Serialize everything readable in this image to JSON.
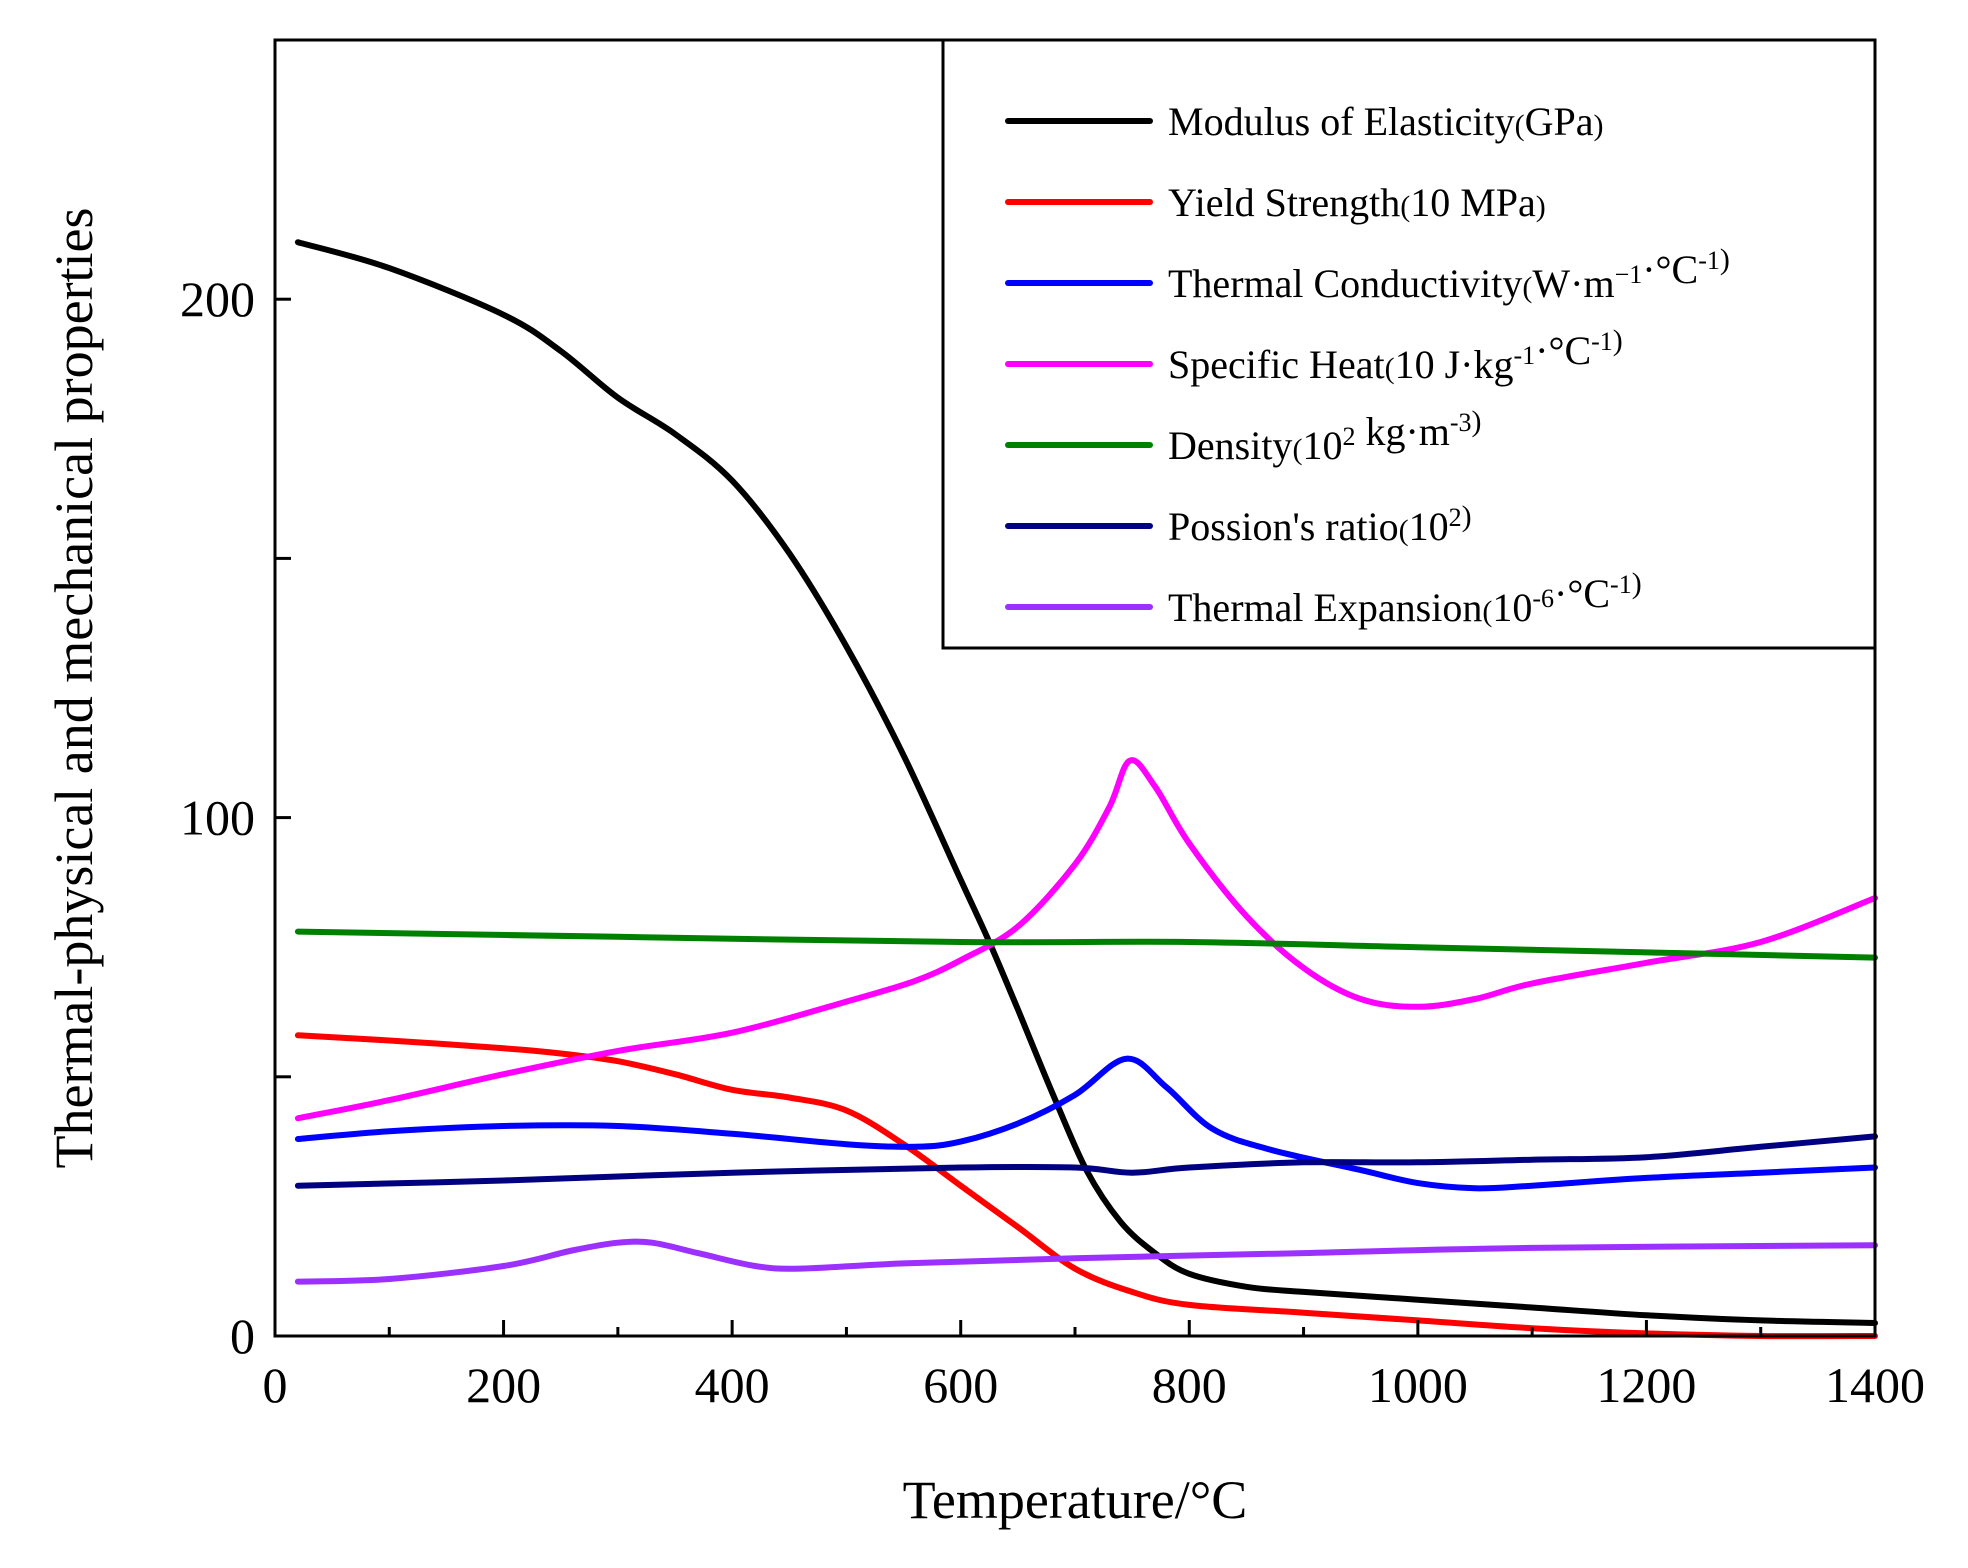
{
  "chart_data": {
    "type": "line",
    "title": "",
    "xlabel": "Temperature/°C",
    "ylabel": "Thermal-physical and mechanical properties",
    "xlim": [
      0,
      1400
    ],
    "ylim": [
      0,
      250
    ],
    "xticks": [
      0,
      200,
      400,
      600,
      800,
      1000,
      1200,
      1400
    ],
    "xtick_labels": [
      "0",
      "200",
      "400",
      "600",
      "800",
      "1000",
      "1200",
      "1400"
    ],
    "yticks": [
      0,
      50,
      100,
      150,
      200
    ],
    "ytick_labels": [
      "0",
      "",
      "100",
      "",
      "200"
    ],
    "legend_position": "top-right",
    "grid": false,
    "series": [
      {
        "name": "Modulus of Elasticity(GPa)",
        "color": "#000000",
        "points": [
          [
            20,
            211
          ],
          [
            100,
            206
          ],
          [
            200,
            197
          ],
          [
            250,
            190
          ],
          [
            300,
            181
          ],
          [
            350,
            174
          ],
          [
            400,
            165
          ],
          [
            450,
            151
          ],
          [
            500,
            133
          ],
          [
            550,
            112
          ],
          [
            600,
            88
          ],
          [
            625,
            76
          ],
          [
            650,
            63
          ],
          [
            680,
            47
          ],
          [
            710,
            32
          ],
          [
            740,
            22
          ],
          [
            770,
            16
          ],
          [
            800,
            12
          ],
          [
            850,
            9.5
          ],
          [
            900,
            8.5
          ],
          [
            1000,
            7
          ],
          [
            1100,
            5.5
          ],
          [
            1200,
            4
          ],
          [
            1300,
            3
          ],
          [
            1400,
            2.5
          ]
        ]
      },
      {
        "name": "Yield Strength(10 MPa)",
        "color": "#ff0000",
        "points": [
          [
            20,
            58
          ],
          [
            100,
            57
          ],
          [
            200,
            55.5
          ],
          [
            250,
            54.5
          ],
          [
            300,
            53
          ],
          [
            350,
            50.5
          ],
          [
            400,
            47.5
          ],
          [
            450,
            46
          ],
          [
            500,
            43.5
          ],
          [
            550,
            37
          ],
          [
            600,
            29
          ],
          [
            650,
            21
          ],
          [
            700,
            13
          ],
          [
            750,
            8.5
          ],
          [
            800,
            6
          ],
          [
            900,
            4.5
          ],
          [
            1000,
            3
          ],
          [
            1100,
            1.5
          ],
          [
            1200,
            0.5
          ],
          [
            1300,
            0
          ],
          [
            1400,
            0
          ]
        ]
      },
      {
        "name": "Thermal Conductivity(W·m⁻¹·°C⁻¹)",
        "color": "#0000ff",
        "points": [
          [
            20,
            38
          ],
          [
            100,
            39.5
          ],
          [
            200,
            40.5
          ],
          [
            300,
            40.5
          ],
          [
            400,
            39
          ],
          [
            500,
            37
          ],
          [
            560,
            36.5
          ],
          [
            600,
            37.5
          ],
          [
            650,
            41
          ],
          [
            700,
            46.5
          ],
          [
            745,
            53.5
          ],
          [
            780,
            48
          ],
          [
            820,
            40
          ],
          [
            870,
            36
          ],
          [
            950,
            32
          ],
          [
            1000,
            29.5
          ],
          [
            1050,
            28.5
          ],
          [
            1100,
            29
          ],
          [
            1200,
            30.5
          ],
          [
            1300,
            31.5
          ],
          [
            1400,
            32.5
          ]
        ]
      },
      {
        "name": "Specific Heat(10 J·kg⁻¹·°C⁻¹)",
        "color": "#ff00ff",
        "points": [
          [
            20,
            42
          ],
          [
            100,
            45.5
          ],
          [
            200,
            50.5
          ],
          [
            300,
            55
          ],
          [
            400,
            58.5
          ],
          [
            500,
            64.5
          ],
          [
            560,
            68.5
          ],
          [
            600,
            72.5
          ],
          [
            650,
            79
          ],
          [
            700,
            91
          ],
          [
            730,
            102
          ],
          [
            748,
            111
          ],
          [
            770,
            106
          ],
          [
            800,
            95
          ],
          [
            850,
            81
          ],
          [
            900,
            71
          ],
          [
            950,
            65
          ],
          [
            1000,
            63.5
          ],
          [
            1050,
            65
          ],
          [
            1100,
            68
          ],
          [
            1200,
            72
          ],
          [
            1300,
            76
          ],
          [
            1400,
            84.5
          ]
        ]
      },
      {
        "name": "Density(10² kg·m⁻³)",
        "color": "#008000",
        "points": [
          [
            20,
            78
          ],
          [
            300,
            77
          ],
          [
            600,
            76
          ],
          [
            800,
            76
          ],
          [
            1000,
            75
          ],
          [
            1200,
            74
          ],
          [
            1400,
            73
          ]
        ]
      },
      {
        "name": "Possion's ratio(10²)",
        "color": "#000080",
        "points": [
          [
            20,
            29
          ],
          [
            200,
            30
          ],
          [
            400,
            31.5
          ],
          [
            600,
            32.5
          ],
          [
            700,
            32.5
          ],
          [
            750,
            31.5
          ],
          [
            800,
            32.5
          ],
          [
            900,
            33.5
          ],
          [
            1000,
            33.5
          ],
          [
            1100,
            34
          ],
          [
            1200,
            34.5
          ],
          [
            1300,
            36.5
          ],
          [
            1400,
            38.5
          ]
        ]
      },
      {
        "name": "Thermal Expansion(10⁻⁶·°C⁻¹)",
        "color": "#9b30ff",
        "points": [
          [
            20,
            10.5
          ],
          [
            100,
            11
          ],
          [
            200,
            13.5
          ],
          [
            260,
            16.5
          ],
          [
            300,
            18
          ],
          [
            330,
            18
          ],
          [
            370,
            16
          ],
          [
            420,
            13.5
          ],
          [
            460,
            13
          ],
          [
            550,
            14
          ],
          [
            700,
            15
          ],
          [
            900,
            16
          ],
          [
            1100,
            17
          ],
          [
            1400,
            17.5
          ]
        ]
      }
    ]
  },
  "legend": [
    {
      "series": 0,
      "main": "Modulus of Elasticity",
      "paren_open": "(",
      "unit": "GPa",
      "paren_close": ")"
    },
    {
      "series": 1,
      "main": "Yield Strength",
      "paren_open": "(",
      "unit": "10 MPa",
      "paren_close": ")"
    },
    {
      "series": 2,
      "main": "Thermal Conductivity",
      "paren_open": "(",
      "unit": "W·m",
      "sup1": "−1",
      "mid": "·°C",
      "sup2": "-1",
      "paren_close": ")"
    },
    {
      "series": 3,
      "main": "Specific Heat",
      "paren_open": "(",
      "unit": "10 J·kg",
      "sup1": "-1",
      "mid": "·°C",
      "sup2": "-1",
      "paren_close": ")"
    },
    {
      "series": 4,
      "main": " Density",
      "paren_open": "(",
      "unit": "10",
      "sup1": "2",
      "mid": " kg·m",
      "sup2": "-3",
      "paren_close": ")"
    },
    {
      "series": 5,
      "main": "Possion's ratio",
      "paren_open": "(",
      "unit": "10",
      "sup1": "2",
      "paren_close": ")"
    },
    {
      "series": 6,
      "main": "Thermal Expansion",
      "paren_open": "(",
      "unit": "10",
      "sup1": "-6",
      "mid": "·°C",
      "sup2": "-1",
      "paren_close": ")"
    }
  ]
}
